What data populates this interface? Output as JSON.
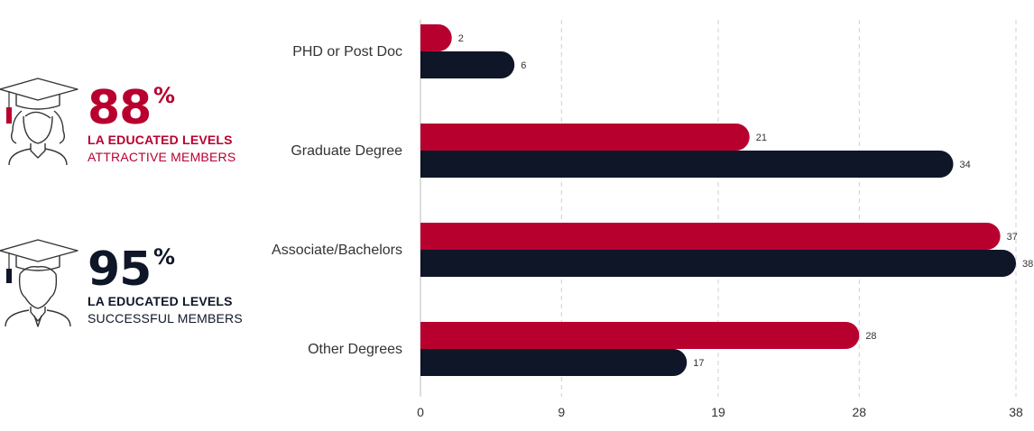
{
  "stats": [
    {
      "value": "88",
      "suffix": "%",
      "line1": "LA EDUCATED LEVELS",
      "line2": "ATTRACTIVE MEMBERS",
      "color": "#b8002f",
      "icon": "female-graduate-icon"
    },
    {
      "value": "95",
      "suffix": "%",
      "line1": "LA EDUCATED LEVELS",
      "line2": "SUCCESSFUL MEMBERS",
      "color": "#0e1628",
      "icon": "male-graduate-icon"
    }
  ],
  "chart_data": {
    "type": "bar",
    "orientation": "horizontal",
    "categories": [
      "PHD or Post Doc",
      "Graduate Degree",
      "Associate/Bachelors",
      "Other Degrees"
    ],
    "series": [
      {
        "values": [
          2,
          21,
          37,
          28
        ],
        "color": "#b8002f"
      },
      {
        "values": [
          6,
          34,
          38,
          17
        ],
        "color": "#0e1628"
      }
    ],
    "xticks": [
      "0",
      "9",
      "19",
      "28",
      "38"
    ],
    "xlim": [
      0,
      38
    ],
    "grid": true,
    "data_labels": true
  }
}
